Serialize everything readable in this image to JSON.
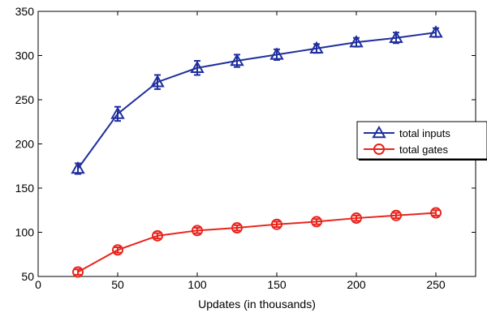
{
  "chart_data": {
    "type": "line",
    "title": "",
    "xlabel": "Updates (in thousands)",
    "ylabel": "",
    "xlim": [
      0,
      275
    ],
    "ylim": [
      50,
      350
    ],
    "xticks": [
      0,
      50,
      100,
      150,
      200,
      250
    ],
    "yticks": [
      50,
      100,
      150,
      200,
      250,
      300,
      350
    ],
    "grid": false,
    "legend_position": "right",
    "x": [
      25,
      50,
      75,
      100,
      125,
      150,
      175,
      200,
      225,
      250
    ],
    "series": [
      {
        "name": "total inputs",
        "color": "#1f2f9e",
        "marker": "triangle",
        "values": [
          172,
          234,
          270,
          286,
          294,
          301,
          308,
          315,
          320,
          326
        ],
        "errors": [
          6,
          8,
          8,
          8,
          7,
          6,
          5,
          5,
          6,
          5
        ]
      },
      {
        "name": "total gates",
        "color": "#e8241c",
        "marker": "circle",
        "values": [
          55,
          80,
          96,
          102,
          105,
          109,
          112,
          116,
          119,
          122
        ],
        "errors": [
          3,
          3,
          3,
          3,
          3,
          3,
          3,
          3,
          3,
          3
        ]
      }
    ]
  }
}
